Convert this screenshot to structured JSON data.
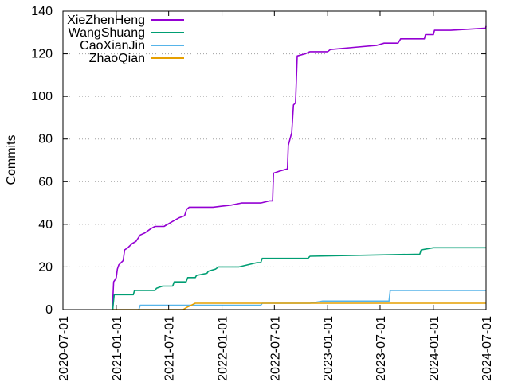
{
  "chart_data": {
    "type": "line",
    "title": "",
    "xlabel": "",
    "ylabel": "Commits",
    "xlim": [
      "2020-07-01",
      "2024-07-01"
    ],
    "ylim": [
      0,
      140
    ],
    "x_ticks": [
      "2020-07-01",
      "2021-01-01",
      "2021-07-01",
      "2022-01-01",
      "2022-07-01",
      "2023-01-01",
      "2023-07-01",
      "2024-01-01",
      "2024-07-01"
    ],
    "y_ticks": [
      0,
      20,
      40,
      60,
      80,
      100,
      120,
      140
    ],
    "grid": "horizontal dotted",
    "legend_position": "top-left",
    "series": [
      {
        "name": "XieZhenHeng",
        "color": "#9400d3",
        "points": [
          [
            "2020-12-20",
            0
          ],
          [
            "2020-12-20",
            4
          ],
          [
            "2020-12-23",
            13
          ],
          [
            "2020-12-28",
            14
          ],
          [
            "2021-01-01",
            15
          ],
          [
            "2021-01-05",
            19
          ],
          [
            "2021-01-10",
            21
          ],
          [
            "2021-01-25",
            23
          ],
          [
            "2021-01-30",
            28
          ],
          [
            "2021-02-10",
            29
          ],
          [
            "2021-02-25",
            31
          ],
          [
            "2021-03-10",
            32
          ],
          [
            "2021-03-25",
            35
          ],
          [
            "2021-04-10",
            36
          ],
          [
            "2021-05-01",
            38
          ],
          [
            "2021-05-15",
            39
          ],
          [
            "2021-06-15",
            39
          ],
          [
            "2021-07-10",
            41
          ],
          [
            "2021-08-05",
            43
          ],
          [
            "2021-08-25",
            44
          ],
          [
            "2021-09-01",
            47
          ],
          [
            "2021-09-10",
            48
          ],
          [
            "2021-12-01",
            48
          ],
          [
            "2022-01-01",
            48.5
          ],
          [
            "2022-02-01",
            49
          ],
          [
            "2022-03-10",
            50
          ],
          [
            "2022-05-15",
            50
          ],
          [
            "2022-06-15",
            51
          ],
          [
            "2022-06-25",
            51
          ],
          [
            "2022-06-28",
            64
          ],
          [
            "2022-07-20",
            65
          ],
          [
            "2022-08-15",
            66
          ],
          [
            "2022-08-18",
            77
          ],
          [
            "2022-08-30",
            83
          ],
          [
            "2022-09-05",
            96
          ],
          [
            "2022-09-12",
            97
          ],
          [
            "2022-09-18",
            119
          ],
          [
            "2022-10-15",
            120
          ],
          [
            "2022-11-01",
            121
          ],
          [
            "2023-01-01",
            121
          ],
          [
            "2023-01-10",
            122
          ],
          [
            "2023-04-01",
            123
          ],
          [
            "2023-06-20",
            124
          ],
          [
            "2023-07-15",
            125
          ],
          [
            "2023-09-01",
            125
          ],
          [
            "2023-09-10",
            127
          ],
          [
            "2023-12-01",
            127
          ],
          [
            "2023-12-05",
            129
          ],
          [
            "2024-01-01",
            129
          ],
          [
            "2024-01-05",
            131
          ],
          [
            "2024-03-01",
            131
          ],
          [
            "2024-06-30",
            132
          ],
          [
            "2024-07-01",
            133
          ]
        ]
      },
      {
        "name": "WangShuang",
        "color": "#009e73",
        "points": [
          [
            "2020-12-20",
            0
          ],
          [
            "2020-12-22",
            3
          ],
          [
            "2020-12-25",
            7
          ],
          [
            "2021-03-01",
            7
          ],
          [
            "2021-03-05",
            9
          ],
          [
            "2021-05-15",
            9
          ],
          [
            "2021-05-20",
            10
          ],
          [
            "2021-06-10",
            11
          ],
          [
            "2021-07-15",
            11
          ],
          [
            "2021-07-20",
            13
          ],
          [
            "2021-08-30",
            13
          ],
          [
            "2021-09-05",
            15
          ],
          [
            "2021-10-01",
            15
          ],
          [
            "2021-10-05",
            16
          ],
          [
            "2021-11-10",
            17
          ],
          [
            "2021-11-15",
            18
          ],
          [
            "2021-12-10",
            19
          ],
          [
            "2021-12-20",
            20
          ],
          [
            "2022-03-01",
            20
          ],
          [
            "2022-05-01",
            22
          ],
          [
            "2022-05-15",
            22
          ],
          [
            "2022-05-20",
            24
          ],
          [
            "2022-10-25",
            24
          ],
          [
            "2022-11-01",
            25
          ],
          [
            "2023-11-15",
            26
          ],
          [
            "2023-11-20",
            28
          ],
          [
            "2024-01-01",
            29
          ],
          [
            "2024-07-01",
            29
          ]
        ]
      },
      {
        "name": "CaoXianJin",
        "color": "#56b4e9",
        "points": [
          [
            "2021-03-20",
            0
          ],
          [
            "2021-03-25",
            2
          ],
          [
            "2021-12-01",
            2
          ],
          [
            "2022-05-15",
            2
          ],
          [
            "2022-05-20",
            3
          ],
          [
            "2022-11-01",
            3
          ],
          [
            "2022-12-15",
            4
          ],
          [
            "2023-08-01",
            4
          ],
          [
            "2023-08-05",
            9
          ],
          [
            "2024-07-01",
            9
          ]
        ]
      },
      {
        "name": "ZhaoQian",
        "color": "#e69f00",
        "points": [
          [
            "2020-12-20",
            0
          ],
          [
            "2021-08-20",
            0
          ],
          [
            "2021-09-01",
            1
          ],
          [
            "2021-10-01",
            3
          ],
          [
            "2024-07-01",
            3
          ]
        ]
      }
    ]
  }
}
